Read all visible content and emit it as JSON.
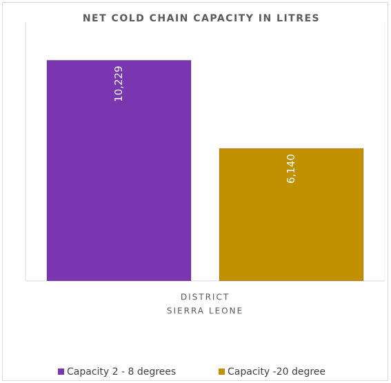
{
  "chart_data": {
    "type": "bar",
    "title": "NET COLD CHAIN CAPACITY IN LITRES",
    "categories": [
      "DISTRICT"
    ],
    "group_label": "SIERRA LEONE",
    "series": [
      {
        "name": "Capacity 2 - 8 degrees",
        "color": "#7a36b0",
        "values": [
          10229
        ],
        "value_labels": [
          "10,229"
        ]
      },
      {
        "name": "Capacity -20 degree",
        "color": "#c09000",
        "values": [
          6140
        ],
        "value_labels": [
          "6,140"
        ]
      }
    ],
    "ylim": [
      0,
      12000
    ],
    "legend": "bottom"
  }
}
